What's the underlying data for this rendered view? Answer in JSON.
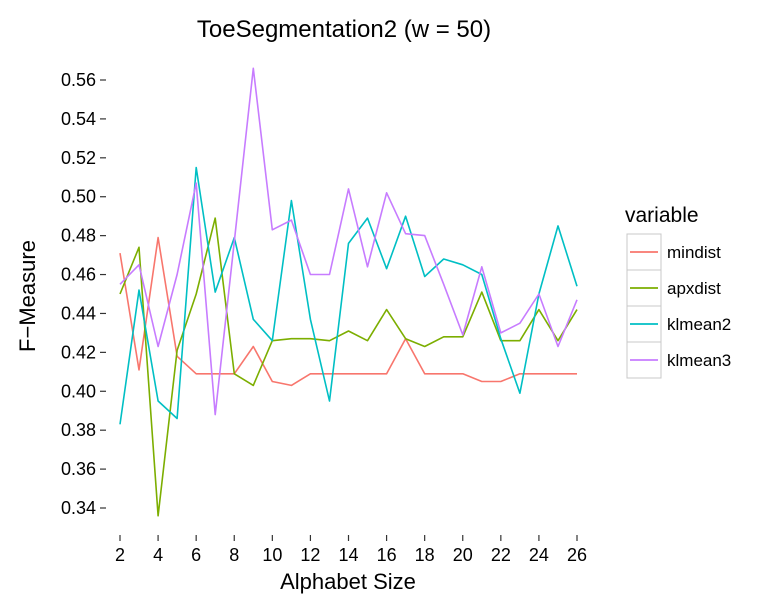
{
  "chart_data": {
    "type": "line",
    "title": "ToeSegmentation2 (w = 50)",
    "xlabel": "Alphabet Size",
    "ylabel": "F−Measure",
    "xlim": [
      2,
      26
    ],
    "ylim": [
      0.33,
      0.57
    ],
    "xticks": [
      2,
      4,
      6,
      8,
      10,
      12,
      14,
      16,
      18,
      20,
      22,
      24,
      26
    ],
    "yticks": [
      0.34,
      0.36,
      0.38,
      0.4,
      0.42,
      0.44,
      0.46,
      0.48,
      0.5,
      0.52,
      0.54,
      0.56
    ],
    "x": [
      2,
      3,
      4,
      5,
      6,
      7,
      8,
      9,
      10,
      11,
      12,
      13,
      14,
      15,
      16,
      17,
      18,
      19,
      20,
      21,
      22,
      23,
      24,
      25,
      26
    ],
    "legend": {
      "title": "variable",
      "position": "right"
    },
    "grid": false,
    "series": [
      {
        "name": "mindist",
        "color": "#F8766D",
        "values": [
          0.471,
          0.411,
          0.479,
          0.418,
          0.409,
          0.409,
          0.409,
          0.423,
          0.405,
          0.403,
          0.409,
          0.409,
          0.409,
          0.409,
          0.409,
          0.427,
          0.409,
          0.409,
          0.409,
          0.405,
          0.405,
          0.409,
          0.409,
          0.409,
          0.409
        ]
      },
      {
        "name": "apxdist",
        "color": "#7CAE00",
        "values": [
          0.45,
          0.474,
          0.336,
          0.421,
          0.45,
          0.489,
          0.409,
          0.403,
          0.426,
          0.427,
          0.427,
          0.426,
          0.431,
          0.426,
          0.442,
          0.427,
          0.423,
          0.428,
          0.428,
          0.451,
          0.426,
          0.426,
          0.442,
          0.426,
          0.442
        ]
      },
      {
        "name": "klmean2",
        "color": "#00BFC4",
        "values": [
          0.383,
          0.452,
          0.395,
          0.386,
          0.515,
          0.451,
          0.479,
          0.437,
          0.426,
          0.498,
          0.437,
          0.395,
          0.476,
          0.489,
          0.463,
          0.49,
          0.459,
          0.468,
          0.465,
          0.46,
          0.427,
          0.399,
          0.45,
          0.485,
          0.454
        ]
      },
      {
        "name": "klmean3",
        "color": "#C77CFF",
        "values": [
          0.455,
          0.465,
          0.423,
          0.46,
          0.507,
          0.388,
          0.477,
          0.566,
          0.483,
          0.488,
          0.46,
          0.46,
          0.504,
          0.464,
          0.502,
          0.481,
          0.48,
          0.455,
          0.429,
          0.464,
          0.43,
          0.435,
          0.45,
          0.423,
          0.447
        ]
      }
    ]
  }
}
